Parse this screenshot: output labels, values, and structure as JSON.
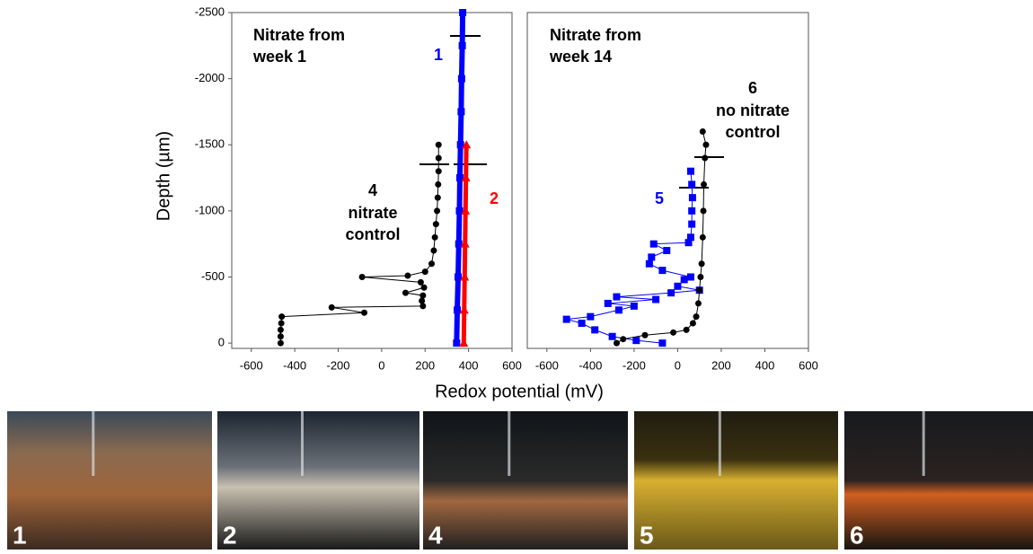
{
  "chart_data": [
    {
      "type": "scatter",
      "title_lines": [
        "Nitrate from",
        "week 1"
      ],
      "ylabel": "Depth (µm)",
      "xlabel": "Redox potential (mV)",
      "xlim": [
        -690,
        600
      ],
      "xticks": [
        -600,
        -400,
        -200,
        0,
        200,
        400,
        600
      ],
      "ylim": [
        40,
        -2500
      ],
      "yticks": [
        -2500,
        -2000,
        -1500,
        -1000,
        -500,
        0
      ],
      "series": [
        {
          "name": "1",
          "color": "#0000ff",
          "marker": "square",
          "line_width": 6,
          "x": [
            345,
            348,
            352,
            355,
            358,
            360,
            363,
            366,
            368,
            371,
            373
          ],
          "values": [
            0,
            -250,
            -500,
            -750,
            -1000,
            -1250,
            -1500,
            -1750,
            -2000,
            -2250,
            -2500
          ]
        },
        {
          "name": "2",
          "color": "#ff0000",
          "marker": "triangle",
          "line_width": 5,
          "x": [
            378,
            380,
            382,
            384,
            386,
            388,
            390
          ],
          "values": [
            0,
            -250,
            -500,
            -750,
            -1000,
            -1250,
            -1500
          ]
        },
        {
          "name": "4",
          "color": "#000000",
          "marker": "circle",
          "line_width": 1,
          "label_lines": [
            "nitrate",
            "control"
          ],
          "x": [
            -465,
            -465,
            -465,
            -462,
            -460,
            -80,
            -230,
            190,
            185,
            190,
            110,
            195,
            180,
            -90,
            120,
            200,
            230,
            240,
            245,
            250,
            255,
            258,
            260,
            262,
            262,
            262
          ],
          "values": [
            0,
            -50,
            -100,
            -150,
            -200,
            -230,
            -270,
            -280,
            -320,
            -360,
            -380,
            -420,
            -460,
            -500,
            -510,
            -540,
            -600,
            -700,
            -800,
            -900,
            -1000,
            -1100,
            -1200,
            -1300,
            -1400,
            -1500
          ]
        }
      ]
    },
    {
      "type": "scatter",
      "title_lines": [
        "Nitrate from",
        "week 14"
      ],
      "xlim": [
        -690,
        600
      ],
      "xticks": [
        -600,
        -400,
        -200,
        0,
        200,
        400,
        600
      ],
      "ylim": [
        40,
        -2500
      ],
      "series": [
        {
          "name": "5",
          "color": "#0000ff",
          "marker": "square",
          "line_width": 1,
          "x": [
            -70,
            -190,
            -300,
            -380,
            -440,
            -510,
            -400,
            -270,
            -200,
            -320,
            -100,
            -280,
            -30,
            100,
            0,
            30,
            60,
            -70,
            -130,
            -120,
            -50,
            -110,
            50,
            60,
            65,
            65,
            68,
            65,
            60
          ],
          "values": [
            0,
            -20,
            -50,
            -100,
            -150,
            -180,
            -200,
            -250,
            -280,
            -300,
            -330,
            -350,
            -380,
            -400,
            -430,
            -480,
            -500,
            -550,
            -600,
            -650,
            -700,
            -750,
            -760,
            -800,
            -900,
            -1000,
            -1100,
            -1200,
            -1300
          ]
        },
        {
          "name": "6",
          "color": "#000000",
          "marker": "circle",
          "line_width": 1,
          "label_lines": [
            "no nitrate",
            "control"
          ],
          "x": [
            -280,
            -250,
            -150,
            -20,
            40,
            70,
            85,
            95,
            100,
            105,
            110,
            115,
            118,
            120,
            125,
            130,
            115
          ],
          "values": [
            0,
            -30,
            -60,
            -80,
            -100,
            -150,
            -200,
            -300,
            -400,
            -500,
            -600,
            -800,
            -1000,
            -1200,
            -1400,
            -1500,
            -1600
          ]
        }
      ]
    }
  ],
  "photos": [
    {
      "label": "1"
    },
    {
      "label": "2"
    },
    {
      "label": "4"
    },
    {
      "label": "5"
    },
    {
      "label": "6"
    }
  ]
}
